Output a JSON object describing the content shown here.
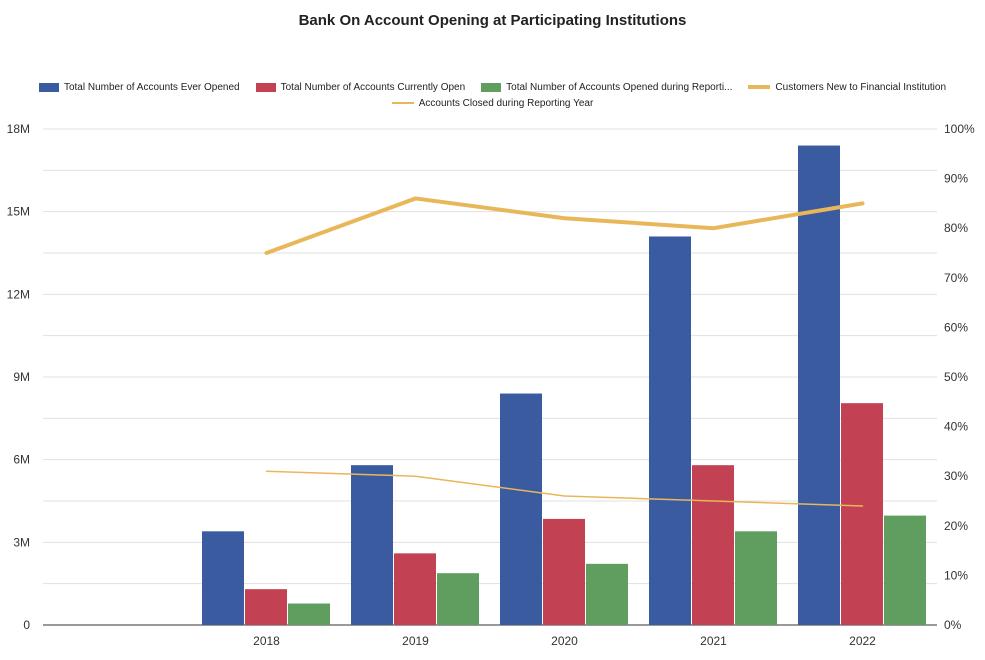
{
  "chart_data": {
    "type": "bar",
    "title": "Bank On Account Opening at Participating Institutions",
    "categories": [
      "2018",
      "2019",
      "2020",
      "2021",
      "2022"
    ],
    "y_left": {
      "ticks": [
        "0",
        "3M",
        "6M",
        "9M",
        "12M",
        "15M",
        "18M"
      ],
      "tick_values": [
        0,
        3000000,
        6000000,
        9000000,
        12000000,
        15000000,
        18000000
      ],
      "ylim": [
        0,
        18000000
      ]
    },
    "y_right": {
      "ticks": [
        "0%",
        "10%",
        "20%",
        "30%",
        "40%",
        "50%",
        "60%",
        "70%",
        "80%",
        "90%",
        "100%"
      ],
      "tick_values": [
        0,
        10,
        20,
        30,
        40,
        50,
        60,
        70,
        80,
        90,
        100
      ],
      "ylim": [
        0,
        100
      ]
    },
    "series": [
      {
        "name": "Total Number of Accounts Ever Opened",
        "kind": "bar",
        "axis": "left",
        "color": "#3a5ba0",
        "values": [
          3400000,
          5800000,
          8400000,
          14100000,
          17400000
        ]
      },
      {
        "name": "Total Number of Accounts Currently Open",
        "kind": "bar",
        "axis": "left",
        "color": "#c24152",
        "values": [
          1300000,
          2600000,
          3850000,
          5800000,
          8050000
        ]
      },
      {
        "name": "Total Number of Accounts Opened during Reporti...",
        "kind": "bar",
        "axis": "left",
        "color": "#5f9e5f",
        "values": [
          780000,
          1880000,
          2220000,
          3400000,
          3970000
        ]
      },
      {
        "name": "Customers New to Financial Institution",
        "kind": "line",
        "axis": "right",
        "color": "#e8b75a",
        "width": 4,
        "values": [
          75,
          86,
          82,
          80,
          85
        ]
      },
      {
        "name": "Accounts Closed during Reporting Year",
        "kind": "line",
        "axis": "right",
        "color": "#e8b75a",
        "width": 1.5,
        "values": [
          31,
          30,
          26,
          25,
          24
        ]
      }
    ],
    "grid": true,
    "legend_position": "top"
  }
}
